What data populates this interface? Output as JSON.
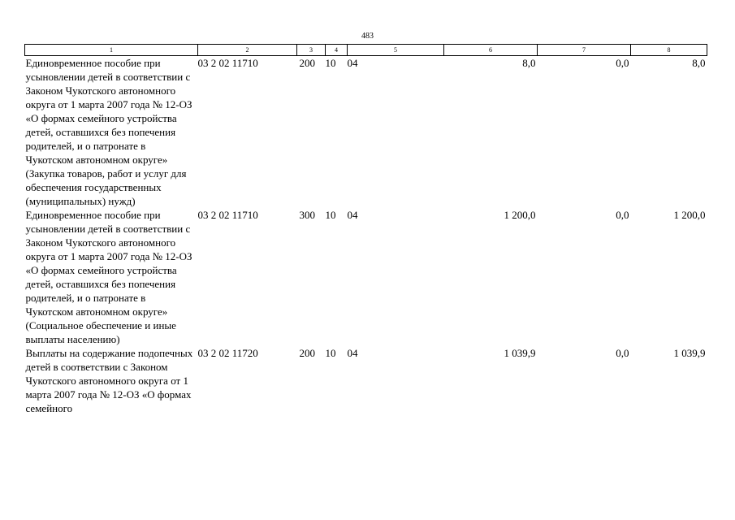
{
  "page_number": "483",
  "headers": [
    "1",
    "2",
    "3",
    "4",
    "5",
    "6",
    "7",
    "8"
  ],
  "rows": [
    {
      "name": "Единовременное пособие при усыновлении детей в соответствии с Законом Чукотского автономного округа от 1 марта 2007 года № 12-ОЗ «О формах семейного устройства детей, оставшихся без попечения родителей, и о патронате в Чукотском автономном округе» (Закупка товаров, работ и услуг для обеспечения государственных (муниципальных) нужд)",
      "code": "03 2 02 11710",
      "c3": "200",
      "c4": "10",
      "c5": "04",
      "c6": "8,0",
      "c7": "0,0",
      "c8": "8,0"
    },
    {
      "name": "Единовременное пособие при усыновлении детей в соответствии с Законом Чукотского автономного округа от 1 марта 2007 года № 12-ОЗ «О формах семейного устройства детей, оставшихся без попечения родителей, и о патронате в Чукотском автономном округе» (Социальное обеспечение и иные выплаты населению)",
      "code": "03 2 02 11710",
      "c3": "300",
      "c4": "10",
      "c5": "04",
      "c6": "1 200,0",
      "c7": "0,0",
      "c8": "1 200,0"
    },
    {
      "name": "Выплаты на содержание подопечных детей в соответствии с Законом Чукотского автономного округа от 1 марта 2007 года № 12-ОЗ «О формах семейного",
      "code": "03 2 02 11720",
      "c3": "200",
      "c4": "10",
      "c5": "04",
      "c6": "1 039,9",
      "c7": "0,0",
      "c8": "1 039,9"
    }
  ]
}
